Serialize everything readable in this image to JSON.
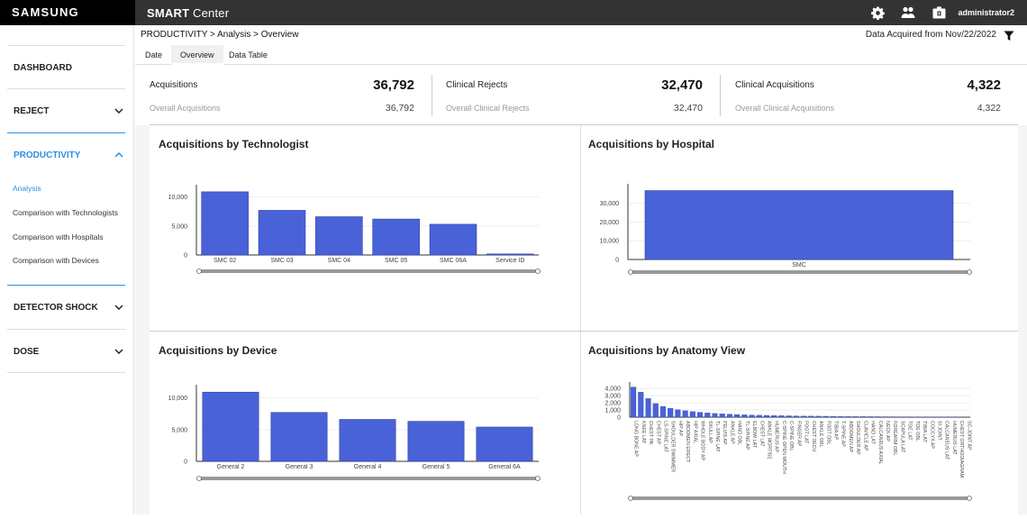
{
  "topbar": {
    "brand": "SAMSUNG",
    "app_title_bold": "SMART",
    "app_title_rest": " Center",
    "user": "administrator2",
    "icons": [
      "gear-icon",
      "users-icon",
      "device-icon"
    ]
  },
  "sidebar": {
    "menus": [
      {
        "label": "DASHBOARD"
      },
      {
        "label": "REJECT"
      },
      {
        "label": "PRODUCTIVITY"
      },
      {
        "label": "DETECTOR SHOCK"
      },
      {
        "label": "DOSE"
      }
    ],
    "submenu": [
      "Analysis",
      "Comparison with Technologists",
      "Comparison with Hospitals",
      "Comparison with Devices"
    ]
  },
  "header": {
    "breadcrumb": "PRODUCTIVITY > Analysis > Overview",
    "acquired": "Data Acquired from Nov/22/2022"
  },
  "tabs": [
    "Date",
    "Overview",
    "Data Table"
  ],
  "kpis": [
    {
      "label": "Acquisitions",
      "value": "36,792",
      "sub_label": "Overall Acquisitions",
      "sub_value": "36,792"
    },
    {
      "label": "Clinical Rejects",
      "value": "32,470",
      "sub_label": "Overall Clinical Rejects",
      "sub_value": "32,470"
    },
    {
      "label": "Clinical Acquisitions",
      "value": "4,322",
      "sub_label": "Overall Clinical Acquisitions",
      "sub_value": "4,322"
    }
  ],
  "colors": {
    "bar": "#4a62d8",
    "accent": "#2d8fe0"
  },
  "chart_data": [
    {
      "id": "tech",
      "type": "bar",
      "title": "Acquisitions by Technologist",
      "categories": [
        "SMC 02",
        "SMC 03",
        "SMC 04",
        "SMC 05",
        "SMC 06A",
        "Service ID"
      ],
      "values": [
        10900,
        7700,
        6600,
        6200,
        5300,
        180
      ],
      "yticks": [
        0,
        5000,
        10000
      ],
      "ytick_labels": [
        "0",
        "5,000",
        "10,000"
      ],
      "ylim": [
        0,
        11500
      ]
    },
    {
      "id": "hospital",
      "type": "bar",
      "title": "Acquisitions by Hospital",
      "categories": [
        "SMC"
      ],
      "values": [
        36792
      ],
      "yticks": [
        0,
        10000,
        20000,
        30000
      ],
      "ytick_labels": [
        "0",
        "10,000",
        "20,000",
        "30,000"
      ],
      "ylim": [
        0,
        38500
      ]
    },
    {
      "id": "device",
      "type": "bar",
      "title": "Acquisitions by Device",
      "categories": [
        "General 2",
        "General 3",
        "General 4",
        "General 5",
        "General 6A"
      ],
      "values": [
        10900,
        7700,
        6600,
        6300,
        5400
      ],
      "yticks": [
        0,
        5000,
        10000
      ],
      "ytick_labels": [
        "0",
        "5,000",
        "10,000"
      ],
      "ylim": [
        0,
        11500
      ]
    },
    {
      "id": "anatomy",
      "type": "bar",
      "title": "Acquisitions by Anatomy View",
      "categories": [
        "LONG BONE AP",
        "KNEE LAT",
        "CHEST PA",
        "CHEST AP",
        "LS-SPINE LAT",
        "SHOULDER SWIMMER",
        "HIP AP",
        "ABDOMEN ERECT",
        "HIP AXIAL",
        "WHOLE BODY AP",
        "SKULL AP",
        "TL-SPINE LAT",
        "PELVIS AP",
        "ANKLE AP",
        "HAND OBL",
        "TL-SPINE AP",
        "ELBOW LAT",
        "CHEST LAT",
        "ANKLE MORTISE",
        "HUMERUS AP",
        "C-SPINE OPEN MOUTH",
        "C-SPINE OBL",
        "FINGER AP",
        "FOOT LAT",
        "CHEST DECU",
        "ANKLE OBL",
        "FOOT OBL",
        "TIBIA AP",
        "T-SPINE AP",
        "ABDOMEN AP",
        "SHOULDER AP",
        "CLAVICLE AP",
        "HAND LAT",
        "CALCANEUS AXIAL",
        "NECK AP",
        "FOREARM OBL",
        "SCAPULA LAT",
        "TOE LAT",
        "TOE OBL",
        "TIBIA LAT",
        "COCCYX AP",
        "SI JOINT",
        "CALCANEUS LAT",
        "HUMERUS LAT",
        "CHEST ORTHODIAGRAM",
        "SC-JOINT AP"
      ],
      "values": [
        4200,
        3500,
        2600,
        1900,
        1500,
        1250,
        1050,
        900,
        780,
        680,
        600,
        520,
        460,
        410,
        370,
        330,
        300,
        270,
        250,
        230,
        210,
        190,
        175,
        160,
        150,
        140,
        130,
        120,
        110,
        100,
        92,
        85,
        78,
        72,
        66,
        60,
        55,
        50,
        45,
        40,
        35,
        30,
        25,
        20,
        15,
        10
      ],
      "yticks": [
        0,
        1000,
        2000,
        3000,
        4000
      ],
      "ytick_labels": [
        "0",
        "1,000",
        "2,000",
        "3,000",
        "4,000"
      ],
      "ylim": [
        0,
        4400
      ]
    }
  ]
}
